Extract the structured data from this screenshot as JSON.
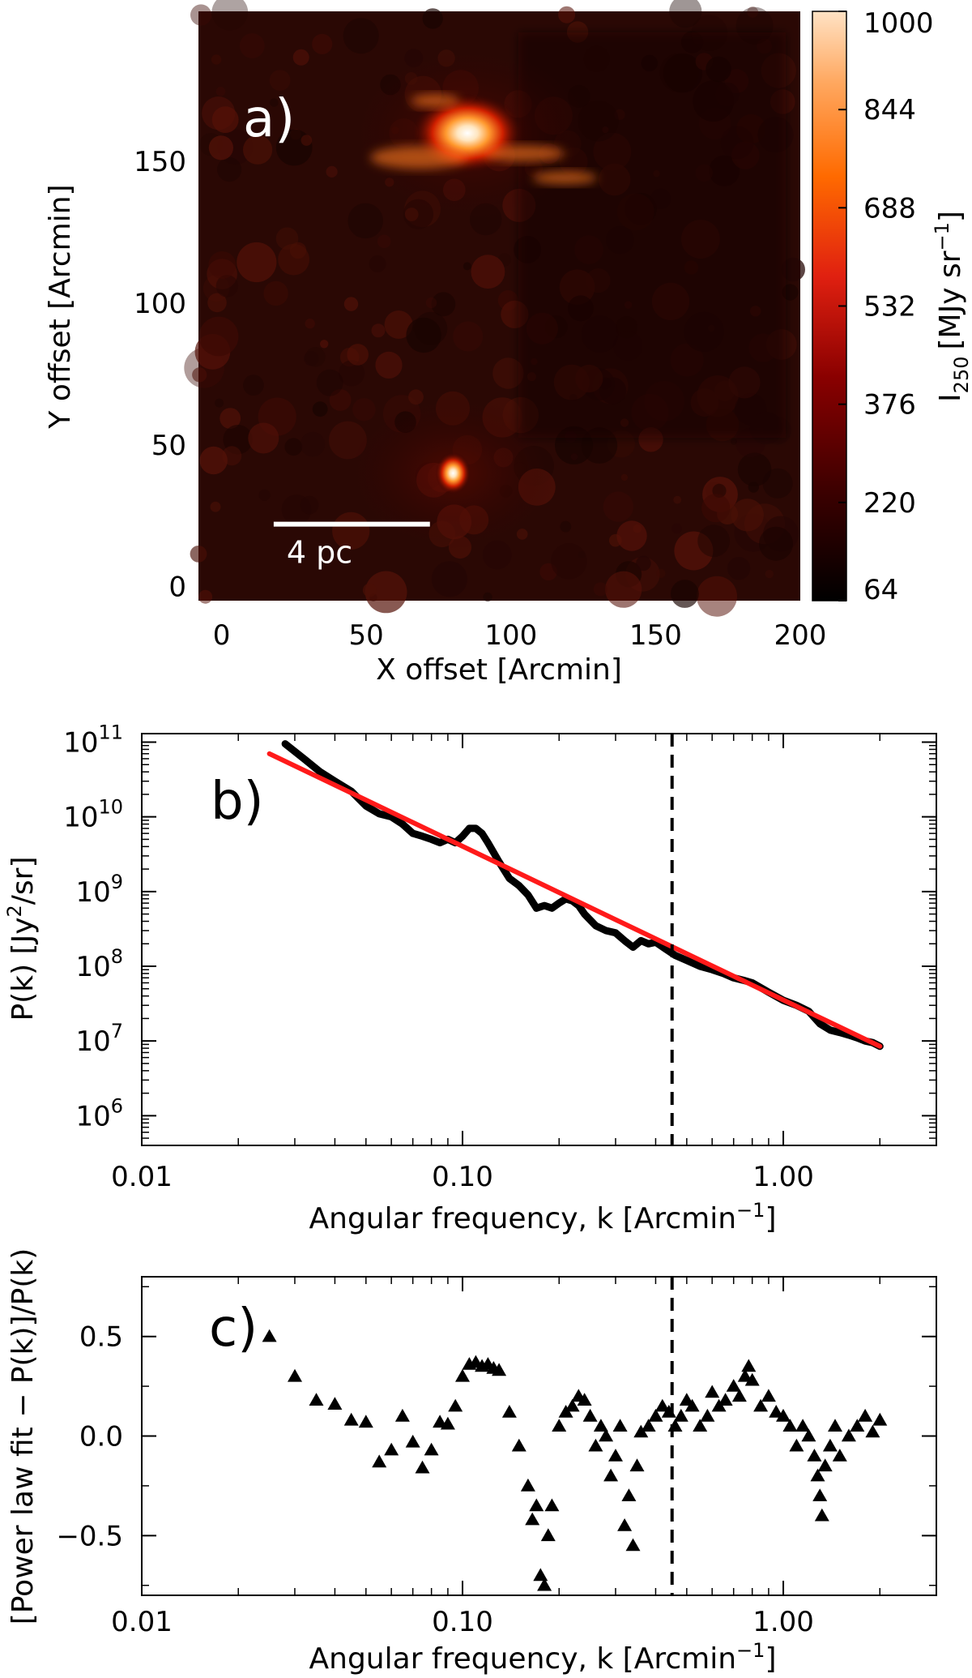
{
  "chart_data": [
    {
      "type": "heatmap",
      "panel_label": "a)",
      "xlabel": "X offset [Arcmin]",
      "ylabel": "Y offset [Arcmin]",
      "xlim": [
        -8,
        200
      ],
      "ylim": [
        -5,
        203
      ],
      "x_ticks": [
        0,
        50,
        100,
        150,
        200
      ],
      "y_ticks": [
        0,
        50,
        100,
        150
      ],
      "scale_bar": {
        "label": "4 pc",
        "x_start": 18,
        "x_end": 72,
        "y": 22
      },
      "colorbar": {
        "label_main": "I",
        "label_sub": "250",
        "label_unit": "[MJy sr",
        "label_exp": "−1",
        "label_close": "]",
        "ticks": [
          64,
          220,
          376,
          532,
          688,
          844,
          1000
        ],
        "range": [
          64,
          1000
        ]
      },
      "bright_regions": [
        {
          "x": 85,
          "y": 160,
          "intensity": 1000
        },
        {
          "x": 80,
          "y": 40,
          "intensity": 900
        }
      ]
    },
    {
      "type": "line",
      "panel_label": "b)",
      "xlabel": "Angular frequency, k [Arcmin",
      "xlabel_exp": "−1",
      "xlabel_close": "]",
      "ylabel": "P(k) [Jy",
      "ylabel_exp": "2",
      "ylabel_end": "/sr]",
      "x_scale": "log",
      "y_scale": "log",
      "xlim": [
        0.01,
        3.0
      ],
      "ylim": [
        400000,
        130000000000
      ],
      "x_ticks": [
        0.01,
        0.1,
        1.0
      ],
      "x_tick_labels": [
        "0.01",
        "0.10",
        "1.00"
      ],
      "y_ticks": [
        1000000,
        10000000,
        100000000,
        1000000000,
        10000000000,
        100000000000
      ],
      "y_tick_base": "10",
      "y_tick_exps": [
        "6",
        "7",
        "8",
        "9",
        "10",
        "11"
      ],
      "vline_x": 0.45,
      "series": [
        {
          "color": "#000000",
          "x": [
            0.028,
            0.032,
            0.036,
            0.04,
            0.045,
            0.05,
            0.055,
            0.06,
            0.065,
            0.07,
            0.075,
            0.08,
            0.085,
            0.09,
            0.095,
            0.1,
            0.105,
            0.11,
            0.115,
            0.12,
            0.13,
            0.14,
            0.15,
            0.16,
            0.17,
            0.18,
            0.19,
            0.2,
            0.21,
            0.22,
            0.23,
            0.24,
            0.26,
            0.28,
            0.3,
            0.32,
            0.34,
            0.36,
            0.38,
            0.4,
            0.43,
            0.46,
            0.5,
            0.55,
            0.6,
            0.65,
            0.7,
            0.75,
            0.8,
            0.9,
            1.0,
            1.1,
            1.2,
            1.3,
            1.4,
            1.5,
            1.6,
            1.7,
            1.8,
            1.9,
            2.0
          ],
          "values": [
            95000000000,
            60000000000,
            40000000000,
            30000000000,
            22000000000,
            14000000000,
            11000000000,
            10000000000,
            8000000000,
            6000000000,
            5500000000,
            5000000000,
            4500000000,
            5000000000,
            4500000000,
            5500000000,
            7000000000,
            7000000000,
            6000000000,
            4500000000,
            2500000000,
            1500000000,
            1200000000,
            900000000,
            600000000,
            650000000,
            600000000,
            700000000,
            800000000,
            750000000,
            650000000,
            500000000,
            350000000,
            300000000,
            280000000,
            220000000,
            180000000,
            220000000,
            200000000,
            210000000,
            170000000,
            140000000,
            120000000,
            100000000,
            90000000,
            80000000,
            70000000,
            65000000,
            60000000,
            45000000,
            35000000,
            30000000,
            25000000,
            17000000,
            14000000,
            13000000,
            12000000,
            11000000,
            10000000,
            9500000,
            8500000
          ]
        },
        {
          "color": "#ff1a1a",
          "x": [
            0.025,
            2.0
          ],
          "values": [
            70000000000,
            8500000
          ]
        }
      ]
    },
    {
      "type": "scatter",
      "panel_label": "c)",
      "xlabel": "Angular frequency, k [Arcmin",
      "xlabel_exp": "−1",
      "xlabel_close": "]",
      "ylabel": "[Power law fit − P(k)]/P(k)",
      "x_scale": "log",
      "xlim": [
        0.01,
        3.0
      ],
      "ylim": [
        -0.8,
        0.8
      ],
      "x_ticks": [
        0.01,
        0.1,
        1.0
      ],
      "x_tick_labels": [
        "0.01",
        "0.10",
        "1.00"
      ],
      "y_ticks": [
        -0.5,
        0.0,
        0.5
      ],
      "y_tick_labels": [
        "−0.5",
        "0.0",
        "0.5"
      ],
      "vline_x": 0.45,
      "marker": "triangle",
      "x": [
        0.025,
        0.03,
        0.035,
        0.04,
        0.045,
        0.05,
        0.055,
        0.06,
        0.065,
        0.07,
        0.075,
        0.08,
        0.085,
        0.09,
        0.095,
        0.1,
        0.105,
        0.11,
        0.115,
        0.12,
        0.125,
        0.13,
        0.14,
        0.15,
        0.16,
        0.165,
        0.17,
        0.175,
        0.18,
        0.185,
        0.19,
        0.2,
        0.21,
        0.22,
        0.23,
        0.24,
        0.25,
        0.26,
        0.27,
        0.28,
        0.29,
        0.3,
        0.31,
        0.32,
        0.33,
        0.34,
        0.35,
        0.36,
        0.38,
        0.4,
        0.42,
        0.44,
        0.46,
        0.48,
        0.5,
        0.52,
        0.55,
        0.58,
        0.6,
        0.63,
        0.66,
        0.7,
        0.73,
        0.76,
        0.78,
        0.8,
        0.85,
        0.9,
        0.95,
        1.0,
        1.05,
        1.1,
        1.15,
        1.2,
        1.25,
        1.28,
        1.3,
        1.32,
        1.35,
        1.4,
        1.45,
        1.5,
        1.6,
        1.7,
        1.8,
        1.9,
        2.0
      ],
      "values": [
        0.5,
        0.3,
        0.18,
        0.16,
        0.08,
        0.07,
        -0.13,
        -0.07,
        0.1,
        -0.03,
        -0.16,
        -0.07,
        0.07,
        0.06,
        0.15,
        0.3,
        0.36,
        0.37,
        0.35,
        0.36,
        0.34,
        0.33,
        0.12,
        -0.05,
        -0.25,
        -0.42,
        -0.35,
        -0.7,
        -0.75,
        -0.5,
        -0.35,
        0.05,
        0.12,
        0.15,
        0.2,
        0.18,
        0.1,
        -0.05,
        0.05,
        0.0,
        -0.2,
        -0.1,
        0.05,
        -0.45,
        -0.3,
        -0.55,
        -0.15,
        0.02,
        0.05,
        0.1,
        0.15,
        0.12,
        0.05,
        0.1,
        0.18,
        0.15,
        0.05,
        0.1,
        0.22,
        0.15,
        0.18,
        0.25,
        0.2,
        0.3,
        0.35,
        0.28,
        0.15,
        0.2,
        0.12,
        0.1,
        0.05,
        -0.05,
        0.05,
        0.0,
        -0.1,
        -0.2,
        -0.3,
        -0.4,
        -0.15,
        -0.05,
        0.05,
        -0.1,
        0.0,
        0.05,
        0.1,
        0.02,
        0.08
      ]
    }
  ]
}
